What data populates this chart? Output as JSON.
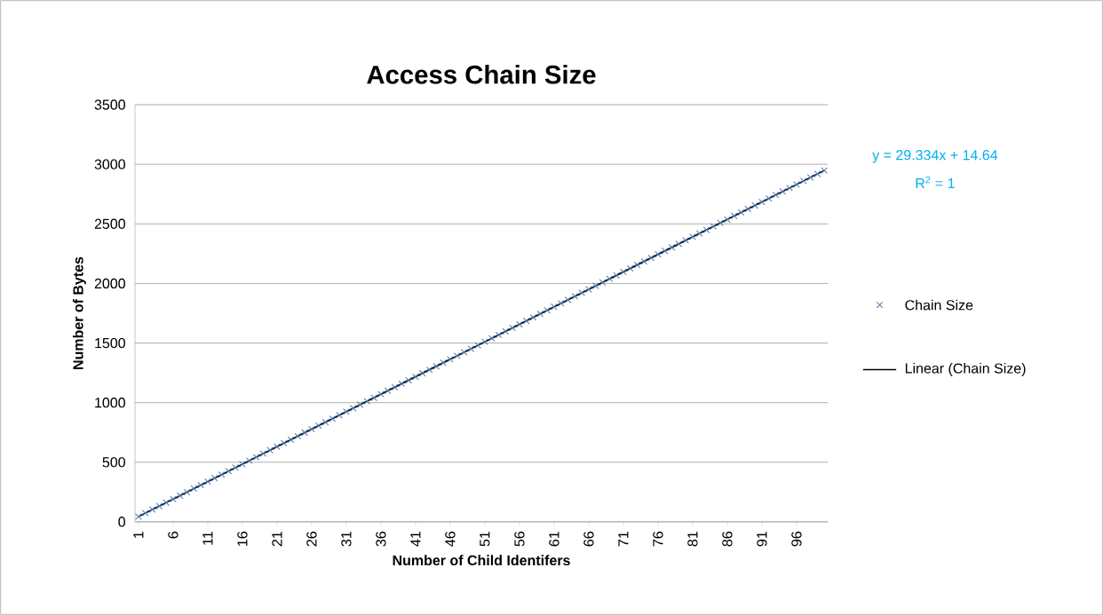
{
  "chart_data": {
    "type": "scatter",
    "title": "Access Chain Size",
    "xlabel": "Number of Child Identifers",
    "ylabel": "Number of Bytes",
    "x": [
      1,
      2,
      3,
      4,
      5,
      6,
      7,
      8,
      9,
      10,
      11,
      12,
      13,
      14,
      15,
      16,
      17,
      18,
      19,
      20,
      21,
      22,
      23,
      24,
      25,
      26,
      27,
      28,
      29,
      30,
      31,
      32,
      33,
      34,
      35,
      36,
      37,
      38,
      39,
      40,
      41,
      42,
      43,
      44,
      45,
      46,
      47,
      48,
      49,
      50,
      51,
      52,
      53,
      54,
      55,
      56,
      57,
      58,
      59,
      60,
      61,
      62,
      63,
      64,
      65,
      66,
      67,
      68,
      69,
      70,
      71,
      72,
      73,
      74,
      75,
      76,
      77,
      78,
      79,
      80,
      81,
      82,
      83,
      84,
      85,
      86,
      87,
      88,
      89,
      90,
      91,
      92,
      93,
      94,
      95,
      96,
      97,
      98,
      99,
      100
    ],
    "series": [
      {
        "name": "Chain Size",
        "marker": "cross",
        "color": "#4f81bd",
        "values": [
          44,
          73,
          103,
          132,
          161,
          191,
          220,
          249,
          279,
          308,
          337,
          367,
          396,
          425,
          455,
          484,
          513,
          543,
          572,
          601,
          631,
          660,
          689,
          719,
          748,
          777,
          807,
          836,
          865,
          895,
          924,
          953,
          983,
          1012,
          1041,
          1071,
          1100,
          1129,
          1159,
          1188,
          1217,
          1247,
          1276,
          1305,
          1335,
          1364,
          1393,
          1423,
          1452,
          1481,
          1511,
          1540,
          1569,
          1599,
          1628,
          1657,
          1687,
          1716,
          1745,
          1775,
          1804,
          1833,
          1863,
          1892,
          1921,
          1951,
          1980,
          2009,
          2039,
          2068,
          2097,
          2127,
          2156,
          2185,
          2215,
          2244,
          2273,
          2303,
          2332,
          2361,
          2391,
          2420,
          2449,
          2479,
          2508,
          2537,
          2567,
          2596,
          2625,
          2655,
          2684,
          2713,
          2743,
          2772,
          2801,
          2831,
          2860,
          2889,
          2919,
          2948
        ]
      },
      {
        "name": "Linear (Chain Size)",
        "type": "line",
        "marker": "none",
        "line_style": "solid",
        "color": "#000000",
        "x": [
          1,
          100
        ],
        "values": [
          44,
          2948
        ]
      }
    ],
    "xlim": [
      0.5,
      100.5
    ],
    "xticks": [
      1,
      6,
      11,
      16,
      21,
      26,
      31,
      36,
      41,
      46,
      51,
      56,
      61,
      66,
      71,
      76,
      81,
      86,
      91,
      96
    ],
    "ylim": [
      0,
      3500
    ],
    "yticks": [
      0,
      500,
      1000,
      1500,
      2000,
      2500,
      3000,
      3500
    ],
    "grid": "y",
    "legend": "right",
    "annotations": [
      "y = 29.334x + 14.64",
      "R$^{2}$ = 1"
    ]
  }
}
